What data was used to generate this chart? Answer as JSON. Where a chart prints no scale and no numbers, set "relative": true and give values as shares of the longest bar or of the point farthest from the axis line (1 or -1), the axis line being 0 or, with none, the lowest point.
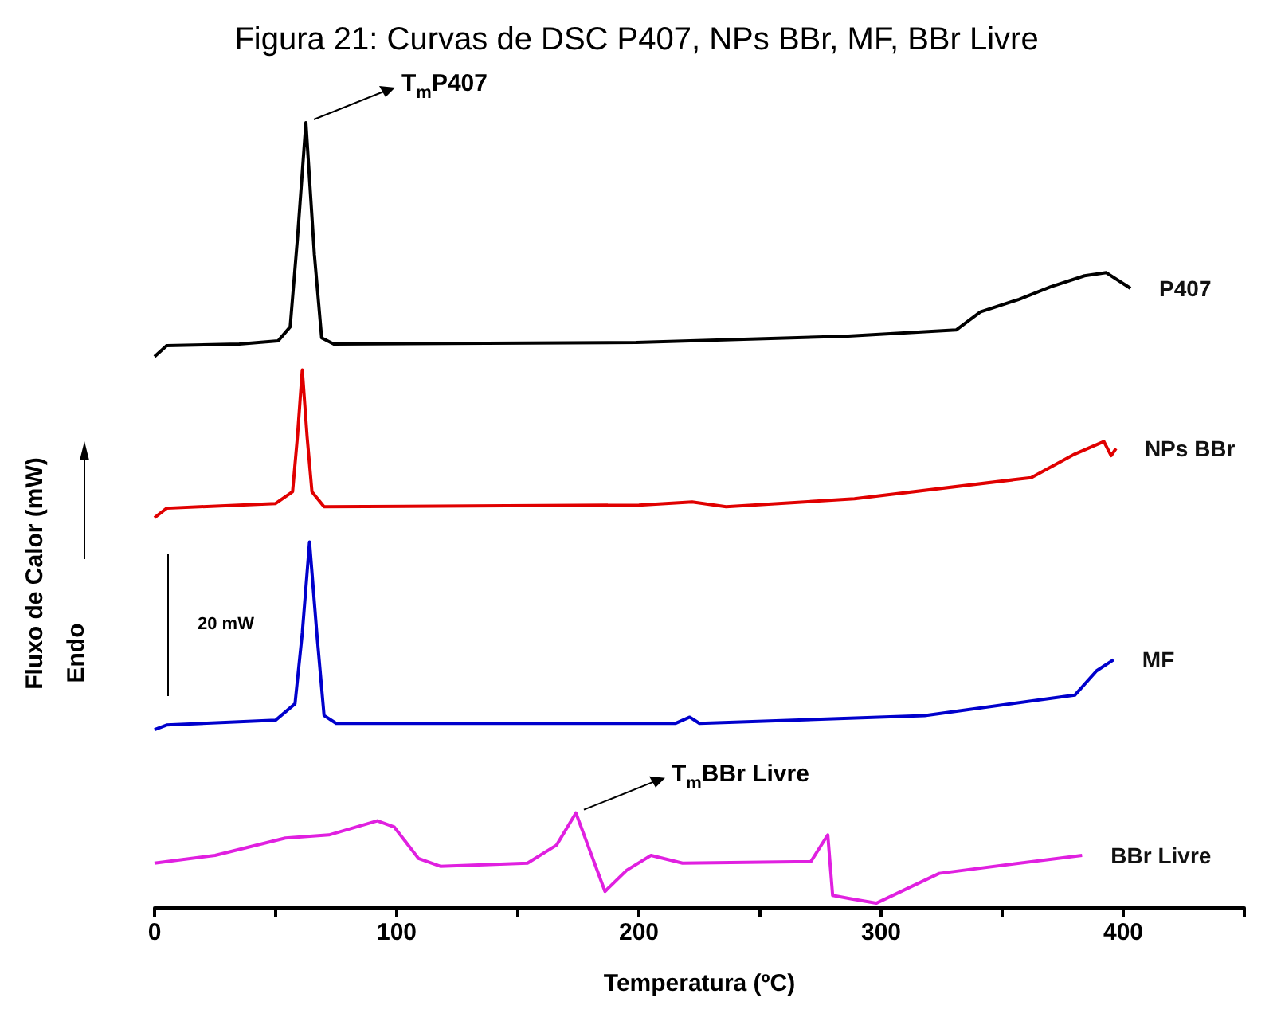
{
  "chart_data": {
    "type": "line",
    "title": "Figura 21: Curvas de DSC P407, NPs BBr, MF, BBr Livre",
    "xlabel": "Temperatura (ºC)",
    "ylabel": "Fluxo de Calor (mW)",
    "relative": true,
    "xlim": [
      0,
      450
    ],
    "xticks": [
      0,
      {
        "value": 50,
        "label": null
      },
      100,
      {
        "value": 150,
        "label": null
      },
      200,
      {
        "value": 250,
        "label": null
      },
      300,
      {
        "value": 350,
        "label": null
      },
      400,
      {
        "value": 450,
        "label": null
      }
    ],
    "annotations": [
      {
        "text": "T$_{m}$P407",
        "x": 62.5,
        "y": 1.0
      },
      {
        "text": "T$_{m}$BBr Livre",
        "x": 174,
        "y": 0.121
      },
      "20 mW",
      "Endo"
    ],
    "series": [
      {
        "name": "P407",
        "color": "#000000",
        "x": [
          0,
          5,
          35,
          51,
          56,
          59,
          62.5,
          66,
          69,
          74,
          199,
          285,
          331,
          341,
          357,
          370,
          384,
          393,
          403
        ],
        "values": [
          0.702,
          0.716,
          0.718,
          0.722,
          0.74,
          0.852,
          1.0,
          0.832,
          0.726,
          0.718,
          0.72,
          0.728,
          0.736,
          0.759,
          0.775,
          0.791,
          0.805,
          0.809,
          0.789
        ]
      },
      {
        "name": "NPs BBr",
        "color": "#e00000",
        "x": [
          0,
          5,
          50,
          57,
          59,
          61,
          63,
          65,
          70,
          200,
          222,
          236,
          289,
          362,
          380,
          392,
          395,
          397
        ],
        "values": [
          0.497,
          0.509,
          0.515,
          0.53,
          0.6,
          0.685,
          0.6,
          0.53,
          0.511,
          0.513,
          0.517,
          0.511,
          0.521,
          0.548,
          0.578,
          0.594,
          0.576,
          0.585
        ]
      },
      {
        "name": "MF",
        "color": "#0000cc",
        "x": [
          0,
          5,
          50,
          58,
          61,
          64,
          67,
          70,
          75,
          215,
          221,
          225,
          318,
          380,
          389,
          396
        ],
        "values": [
          0.227,
          0.233,
          0.239,
          0.26,
          0.35,
          0.466,
          0.35,
          0.245,
          0.235,
          0.235,
          0.243,
          0.235,
          0.245,
          0.271,
          0.302,
          0.316
        ]
      },
      {
        "name": "BBr Livre",
        "color": "#e020e0",
        "x": [
          0,
          25,
          54,
          72,
          92,
          99,
          109,
          118,
          154,
          166,
          174,
          186,
          195,
          205,
          218,
          271,
          278,
          280,
          287,
          298,
          324,
          383
        ],
        "values": [
          0.057,
          0.067,
          0.089,
          0.093,
          0.111,
          0.103,
          0.063,
          0.053,
          0.057,
          0.08,
          0.121,
          0.021,
          0.048,
          0.067,
          0.057,
          0.059,
          0.093,
          0.016,
          0.012,
          0.006,
          0.044,
          0.067
        ]
      }
    ]
  }
}
